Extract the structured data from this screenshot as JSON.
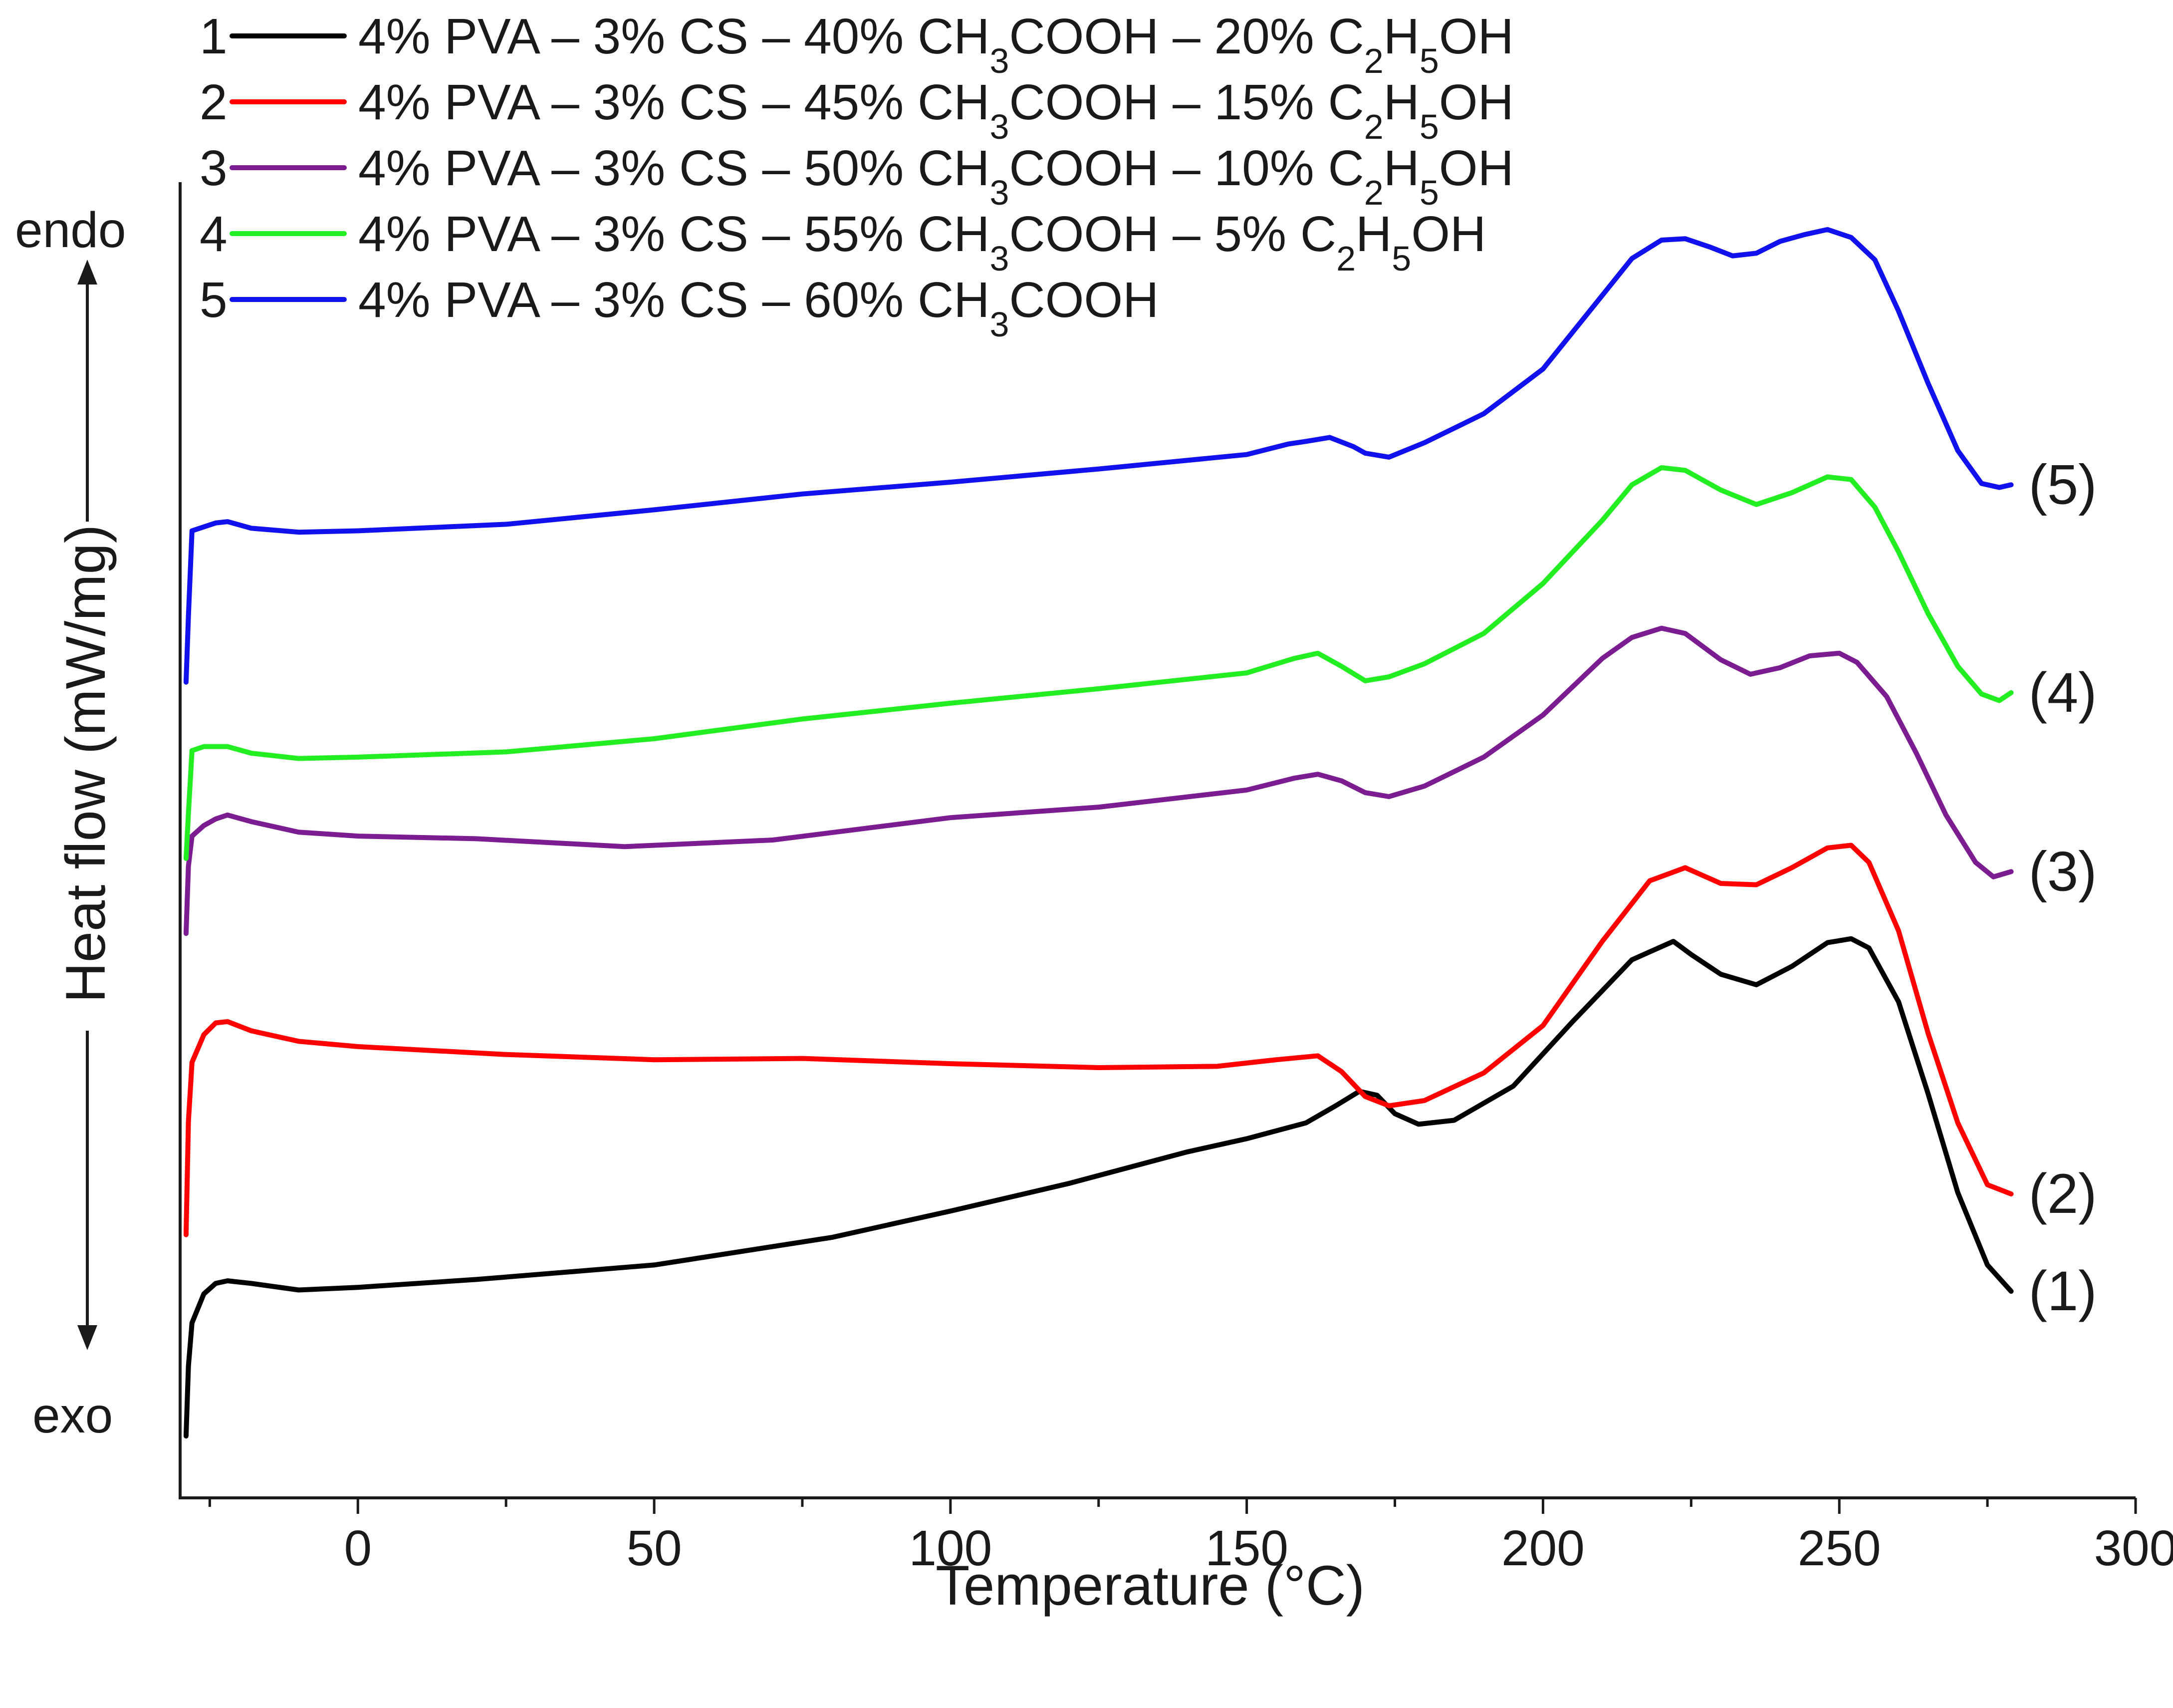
{
  "chart_data": {
    "type": "line",
    "title": "",
    "xlabel": "Temperature (°C)",
    "ylabel": "Heat flow (mW/mg)",
    "xlim": [
      -30,
      300
    ],
    "ylim": [
      0,
      100
    ],
    "x_ticks": [
      0,
      50,
      100,
      150,
      200,
      250,
      300
    ],
    "x_tick_labels": [
      "0",
      "50",
      "100",
      "150",
      "200",
      "250",
      "300"
    ],
    "y_ticks": "none",
    "grid": false,
    "endo_label": "endo",
    "exo_label": "exo",
    "legend_position": "top-left",
    "series": [
      {
        "id": "1",
        "legend_index": "1",
        "name": "4% PVA – 3% CS – 40% CH3COOH – 20% C2H5OH",
        "curve_label": "(1)",
        "color": "#000000",
        "x": [
          -29,
          -28.6,
          -28,
          -26,
          -24,
          -22,
          -18,
          -10,
          0,
          20,
          50,
          80,
          100,
          120,
          140,
          150,
          160,
          165,
          169,
          172,
          175,
          179,
          185,
          195,
          205,
          215,
          222,
          225,
          230,
          236,
          242,
          248,
          252,
          255,
          260,
          265,
          270,
          275,
          279
        ],
        "y": [
          4.7,
          10,
          13.3,
          15.5,
          16.3,
          16.5,
          16.3,
          15.8,
          16,
          16.6,
          17.7,
          19.8,
          21.8,
          23.9,
          26.3,
          27.3,
          28.5,
          29.8,
          30.9,
          30.6,
          29.2,
          28.4,
          28.7,
          31.3,
          36.2,
          40.9,
          42.3,
          41.3,
          39.8,
          39,
          40.4,
          42.2,
          42.5,
          41.8,
          37.7,
          30.7,
          23.2,
          17.7,
          15.7
        ]
      },
      {
        "id": "2",
        "legend_index": "2",
        "name": "4% PVA – 3% CS – 45% CH3COOH – 15% C2H5OH",
        "curve_label": "(2)",
        "color": "#ff0000",
        "x": [
          -29,
          -28.6,
          -28,
          -26,
          -24,
          -22,
          -18,
          -10,
          0,
          25,
          50,
          75,
          100,
          125,
          145,
          155,
          162,
          166,
          170,
          174,
          180,
          190,
          200,
          210,
          218,
          224,
          230,
          236,
          242,
          248,
          252,
          255,
          260,
          265,
          270,
          275,
          279
        ],
        "y": [
          20,
          28.6,
          33.1,
          35.2,
          36.1,
          36.2,
          35.5,
          34.7,
          34.3,
          33.7,
          33.3,
          33.4,
          33,
          32.7,
          32.8,
          33.3,
          33.6,
          32.4,
          30.5,
          29.8,
          30.2,
          32.3,
          35.9,
          42.3,
          46.9,
          47.9,
          46.7,
          46.6,
          47.9,
          49.4,
          49.6,
          48.3,
          43.1,
          35.3,
          28.5,
          23.8,
          23.1
        ]
      },
      {
        "id": "3",
        "legend_index": "3",
        "name": "4% PVA – 3% CS – 50% CH3COOH – 10% C2H5OH",
        "curve_label": "(3)",
        "color": "#7b1c90",
        "x": [
          -29,
          -28.6,
          -28,
          -26,
          -24,
          -22,
          -18,
          -10,
          0,
          20,
          45,
          70,
          100,
          125,
          150,
          158,
          162,
          166,
          170,
          174,
          180,
          190,
          200,
          210,
          215,
          220,
          224,
          230,
          235,
          240,
          245,
          250,
          253,
          258,
          263,
          268,
          273,
          276,
          279
        ],
        "y": [
          42.9,
          48,
          50.3,
          51.1,
          51.6,
          51.9,
          51.4,
          50.6,
          50.3,
          50.1,
          49.5,
          50,
          51.7,
          52.5,
          53.8,
          54.7,
          55,
          54.5,
          53.6,
          53.3,
          54.1,
          56.3,
          59.5,
          63.8,
          65.4,
          66.1,
          65.7,
          63.7,
          62.6,
          63.1,
          64,
          64.2,
          63.5,
          60.9,
          56.6,
          51.9,
          48.3,
          47.2,
          47.6
        ]
      },
      {
        "id": "4",
        "legend_index": "4",
        "name": "4% PVA – 3% CS – 55% CH3COOH – 5% C2H5OH",
        "curve_label": "(4)",
        "color": "#22ee22",
        "x": [
          -29,
          -28.6,
          -28,
          -26,
          -22,
          -18,
          -10,
          0,
          25,
          50,
          75,
          100,
          125,
          150,
          158,
          162,
          166,
          170,
          174,
          180,
          190,
          200,
          210,
          215,
          220,
          224,
          230,
          236,
          242,
          248,
          252,
          256,
          260,
          265,
          270,
          274,
          277,
          279
        ],
        "y": [
          48.6,
          52,
          56.8,
          57.1,
          57.1,
          56.6,
          56.2,
          56.3,
          56.7,
          57.7,
          59.2,
          60.4,
          61.5,
          62.7,
          63.8,
          64.2,
          63.2,
          62.1,
          62.4,
          63.4,
          65.7,
          69.5,
          74.3,
          77,
          78.3,
          78.1,
          76.6,
          75.5,
          76.4,
          77.6,
          77.4,
          75.3,
          71.9,
          67.2,
          63.2,
          61.1,
          60.6,
          61.2
        ]
      },
      {
        "id": "5",
        "legend_index": "5",
        "name": "4% PVA – 3% CS – 60% CH3COOH",
        "curve_label": "(5)",
        "color": "#1111ee",
        "x": [
          -29,
          -28.6,
          -28,
          -26,
          -24,
          -22,
          -18,
          -10,
          0,
          25,
          50,
          75,
          100,
          125,
          150,
          157,
          160,
          164,
          168,
          170,
          174,
          180,
          190,
          200,
          210,
          215,
          220,
          224,
          228,
          232,
          236,
          240,
          244,
          248,
          252,
          256,
          260,
          265,
          270,
          274,
          277,
          279
        ],
        "y": [
          62,
          67,
          73.5,
          73.8,
          74.1,
          74.2,
          73.7,
          73.4,
          73.5,
          74,
          75.1,
          76.3,
          77.2,
          78.2,
          79.3,
          80.1,
          80.3,
          80.6,
          79.9,
          79.4,
          79.1,
          80.2,
          82.4,
          85.8,
          91.4,
          94.2,
          95.6,
          95.7,
          95.1,
          94.4,
          94.6,
          95.5,
          96,
          96.4,
          95.8,
          94.1,
          90.2,
          84.7,
          79.6,
          77.1,
          76.8,
          77
        ]
      }
    ]
  }
}
